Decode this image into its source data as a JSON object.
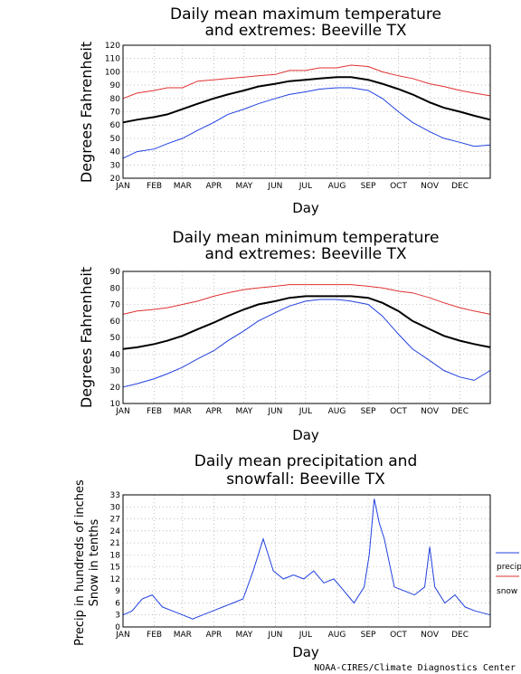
{
  "credit": "NOAA-CIRES/Climate Diagnostics Center",
  "chart_data": [
    {
      "type": "line",
      "title": [
        "Daily mean maximum temperature",
        "and extremes: Beeville TX"
      ],
      "xlabel": "Day",
      "ylabel": "Degrees Fahrenheit",
      "ylim": [
        20,
        120
      ],
      "yticks": [
        20,
        30,
        40,
        50,
        60,
        70,
        80,
        90,
        100,
        110,
        120
      ],
      "months": [
        "JAN",
        "FEB",
        "MAR",
        "APR",
        "MAY",
        "JUN",
        "JUL",
        "AUG",
        "SEP",
        "OCT",
        "NOV",
        "DEC"
      ],
      "grid": true,
      "series": [
        {
          "color": "#e03030",
          "x": [
            1,
            15,
            32,
            45,
            60,
            75,
            91,
            105,
            121,
            135,
            152,
            166,
            182,
            196,
            213,
            227,
            244,
            258,
            274,
            288,
            305,
            319,
            335,
            349,
            365
          ],
          "values": [
            80,
            84,
            86,
            88,
            88,
            93,
            94,
            95,
            96,
            97,
            98,
            101,
            101,
            103,
            103,
            105,
            104,
            100,
            97,
            95,
            91,
            89,
            86,
            84,
            82
          ]
        },
        {
          "color": "#000000",
          "x": [
            1,
            15,
            32,
            45,
            60,
            75,
            91,
            105,
            121,
            135,
            152,
            166,
            182,
            196,
            213,
            227,
            244,
            258,
            274,
            288,
            305,
            319,
            335,
            349,
            365
          ],
          "values": [
            62,
            64,
            66,
            68,
            72,
            76,
            80,
            83,
            86,
            89,
            91,
            93,
            94,
            95,
            96,
            96,
            94,
            91,
            87,
            83,
            77,
            73,
            70,
            67,
            64
          ]
        },
        {
          "color": "#2040e0",
          "x": [
            1,
            15,
            32,
            45,
            60,
            75,
            91,
            105,
            121,
            135,
            152,
            166,
            182,
            196,
            213,
            227,
            244,
            258,
            274,
            288,
            305,
            319,
            335,
            349,
            365
          ],
          "values": [
            35,
            40,
            42,
            46,
            50,
            56,
            62,
            68,
            72,
            76,
            80,
            83,
            85,
            87,
            88,
            88,
            86,
            80,
            70,
            62,
            55,
            50,
            47,
            44,
            45
          ]
        }
      ]
    },
    {
      "type": "line",
      "title": [
        "Daily mean minimum temperature",
        "and extremes: Beeville TX"
      ],
      "xlabel": "Day",
      "ylabel": "Degrees Fahrenheit",
      "ylim": [
        10,
        90
      ],
      "yticks": [
        10,
        20,
        30,
        40,
        50,
        60,
        70,
        80,
        90
      ],
      "months": [
        "JAN",
        "FEB",
        "MAR",
        "APR",
        "MAY",
        "JUN",
        "JUL",
        "AUG",
        "SEP",
        "OCT",
        "NOV",
        "DEC"
      ],
      "grid": true,
      "series": [
        {
          "color": "#e03030",
          "x": [
            1,
            15,
            32,
            45,
            60,
            75,
            91,
            105,
            121,
            135,
            152,
            166,
            182,
            196,
            213,
            227,
            244,
            258,
            274,
            288,
            305,
            319,
            335,
            349,
            365
          ],
          "values": [
            64,
            66,
            67,
            68,
            70,
            72,
            75,
            77,
            79,
            80,
            81,
            82,
            82,
            82,
            82,
            82,
            81,
            80,
            78,
            77,
            74,
            71,
            68,
            66,
            64
          ]
        },
        {
          "color": "#000000",
          "x": [
            1,
            15,
            32,
            45,
            60,
            75,
            91,
            105,
            121,
            135,
            152,
            166,
            182,
            196,
            213,
            227,
            244,
            258,
            274,
            288,
            305,
            319,
            335,
            349,
            365
          ],
          "values": [
            43,
            44,
            46,
            48,
            51,
            55,
            59,
            63,
            67,
            70,
            72,
            74,
            75,
            75,
            75,
            75,
            74,
            71,
            66,
            60,
            55,
            51,
            48,
            46,
            44
          ]
        },
        {
          "color": "#2040e0",
          "x": [
            1,
            15,
            32,
            45,
            60,
            75,
            91,
            105,
            121,
            135,
            152,
            166,
            182,
            196,
            213,
            227,
            244,
            258,
            274,
            288,
            305,
            319,
            335,
            349,
            365
          ],
          "values": [
            20,
            22,
            25,
            28,
            32,
            37,
            42,
            48,
            54,
            60,
            65,
            69,
            72,
            73,
            73,
            72,
            70,
            63,
            52,
            43,
            36,
            30,
            26,
            24,
            30
          ]
        }
      ]
    },
    {
      "type": "line",
      "title": [
        "Daily mean precipitation and",
        "snowfall: Beeville TX"
      ],
      "xlabel": "Day",
      "ylabel": [
        "Precip in hundreds of inches",
        "Snow in tenths"
      ],
      "ylim": [
        0,
        33
      ],
      "yticks": [
        0,
        3,
        6,
        9,
        12,
        15,
        18,
        21,
        24,
        27,
        30,
        33
      ],
      "months": [
        "JAN",
        "FEB",
        "MAR",
        "APR",
        "MAY",
        "JUN",
        "JUL",
        "AUG",
        "SEP",
        "OCT",
        "NOV",
        "DEC"
      ],
      "grid": true,
      "legend_position": "right",
      "series": [
        {
          "name": "precip",
          "color": "#2040e0",
          "x": [
            1,
            10,
            20,
            30,
            40,
            50,
            60,
            70,
            80,
            90,
            100,
            110,
            120,
            130,
            140,
            150,
            160,
            170,
            180,
            190,
            200,
            210,
            220,
            230,
            240,
            245,
            250,
            255,
            260,
            270,
            280,
            290,
            300,
            305,
            310,
            320,
            330,
            340,
            350,
            365
          ],
          "values": [
            3,
            4,
            7,
            8,
            5,
            4,
            3,
            2,
            3,
            4,
            5,
            6,
            7,
            14,
            22,
            14,
            12,
            13,
            12,
            14,
            11,
            12,
            9,
            6,
            10,
            18,
            32,
            26,
            22,
            10,
            9,
            8,
            10,
            20,
            10,
            6,
            8,
            5,
            4,
            3
          ]
        },
        {
          "name": "snow",
          "color": "#e03030",
          "x": [
            1,
            365
          ],
          "values": [
            0,
            0
          ]
        }
      ]
    }
  ]
}
